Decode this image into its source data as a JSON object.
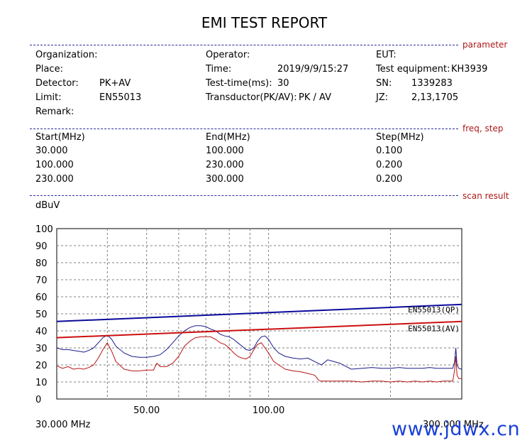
{
  "report": {
    "title": "EMI TEST REPORT",
    "section_labels": {
      "parameter": "parameter",
      "freq_step": "freq, step",
      "scan_result": "scan result"
    },
    "parameters": {
      "organization_label": "Organization:",
      "operator_label": "Operator:",
      "eut_label": "EUT:",
      "place_label": "Place:",
      "time_label": "Time:",
      "time_value": "2019/9/9/15:27",
      "test_equipment_label": "Test equipment:",
      "test_equipment_value": "KH3939",
      "detector_label": "Detector:",
      "detector_value": "PK+AV",
      "test_time_label": "Test-time(ms):",
      "test_time_value": "30",
      "sn_label": "SN:",
      "sn_value": "1339283",
      "limit_label": "Limit:",
      "limit_value": "EN55013",
      "transductor_label": "Transductor(PK/AV):",
      "transductor_value": "PK  /  AV",
      "jz_label": "JZ:",
      "jz_value": "2,13,1705",
      "remark_label": "Remark:"
    },
    "freq_step": {
      "headers": [
        "Start(MHz)",
        "End(MHz)",
        "Step(MHz)"
      ],
      "rows": [
        [
          "30.000",
          "100.000",
          "0.100"
        ],
        [
          "100.000",
          "230.000",
          "0.200"
        ],
        [
          "230.000",
          "300.000",
          "0.200"
        ]
      ]
    },
    "watermark": "www.jdwx.cn"
  },
  "chart_data": {
    "type": "line",
    "ylabel": "dBuV",
    "ylim": [
      0,
      100
    ],
    "xlim": [
      30,
      300
    ],
    "x_scale": "log",
    "y_ticks": [
      "100",
      "90",
      "80",
      "70",
      "60",
      "50",
      "40",
      "30",
      "20",
      "10",
      "0"
    ],
    "x_tick_labels": [
      "50.00",
      "100.00"
    ],
    "x_start_label": "30.000 MHz",
    "x_end_label": "300.000 MHz",
    "grid": true,
    "colors": {
      "qp_limit": "#0a0a9c",
      "av_limit": "#cc1010",
      "pk_trace": "#1a1a8c",
      "av_trace": "#b81414"
    },
    "series": [
      {
        "name": "EN55013(QP)",
        "kind": "limit",
        "x": [
          30,
          300
        ],
        "y": [
          45.5,
          55.5
        ]
      },
      {
        "name": "EN55013(AV)",
        "kind": "limit",
        "x": [
          30,
          300
        ],
        "y": [
          36,
          45.5
        ]
      },
      {
        "kind": "measurement",
        "x": [
          30,
          31,
          32,
          33,
          34,
          35,
          36,
          37,
          38,
          39,
          40,
          41,
          42,
          44,
          46,
          48,
          50,
          52,
          54,
          56,
          58,
          60,
          62,
          64,
          66,
          68,
          70,
          72,
          74,
          76,
          78,
          80,
          82,
          84,
          86,
          88,
          90,
          92,
          94,
          96,
          98,
          100,
          103,
          106,
          110,
          115,
          120,
          125,
          130,
          135,
          140,
          150,
          160,
          170,
          180,
          190,
          200,
          210,
          220,
          230,
          240,
          250,
          260,
          270,
          280,
          285,
          288,
          290,
          292,
          295,
          300
        ],
        "y": [
          30,
          29,
          29,
          28.5,
          28,
          27.5,
          28.5,
          30,
          33,
          36,
          37.5,
          35,
          31,
          27,
          25,
          24.5,
          24.5,
          25,
          26,
          29,
          33,
          37,
          40,
          42,
          43,
          43,
          42.5,
          41,
          40,
          38,
          37,
          36.5,
          35,
          33,
          31,
          29,
          28.5,
          30,
          34,
          36.5,
          37,
          35,
          30,
          27,
          25,
          24,
          23.5,
          24,
          22,
          20,
          23,
          21,
          17.5,
          18,
          18.5,
          18,
          18,
          18.5,
          18,
          18,
          18,
          18.5,
          18,
          18,
          18,
          18,
          22,
          30,
          20,
          18,
          17.5
        ]
      },
      {
        "kind": "measurement",
        "x": [
          30,
          31,
          32,
          33,
          34,
          35,
          36,
          37,
          38,
          39,
          40,
          41,
          42,
          44,
          46,
          48,
          50,
          52,
          53,
          54,
          56,
          58,
          60,
          62,
          64,
          66,
          68,
          70,
          72,
          74,
          76,
          78,
          80,
          82,
          84,
          86,
          88,
          90,
          92,
          94,
          96,
          98,
          100,
          103,
          106,
          110,
          115,
          120,
          125,
          130,
          133,
          135,
          140,
          150,
          160,
          170,
          180,
          190,
          200,
          210,
          220,
          230,
          240,
          250,
          260,
          270,
          280,
          285,
          288,
          290,
          292,
          295,
          300
        ],
        "y": [
          19.5,
          18,
          19,
          17.5,
          18,
          17.5,
          18.5,
          20,
          24,
          29,
          33,
          28,
          22,
          17.5,
          16.5,
          16.5,
          17,
          17,
          21,
          19,
          19,
          21,
          25,
          31,
          34,
          36,
          36.5,
          36.5,
          36.5,
          35,
          33,
          32,
          30,
          27,
          25,
          24,
          23.5,
          25,
          29,
          32,
          33,
          30,
          27,
          22,
          20,
          17.5,
          16.5,
          16,
          15,
          14,
          11,
          10.5,
          10.5,
          10.5,
          10.5,
          10,
          10.5,
          10.5,
          10,
          10.5,
          10,
          10.5,
          10,
          10.5,
          10,
          10.5,
          10.5,
          10.5,
          17,
          25,
          14,
          12,
          12
        ]
      }
    ]
  }
}
